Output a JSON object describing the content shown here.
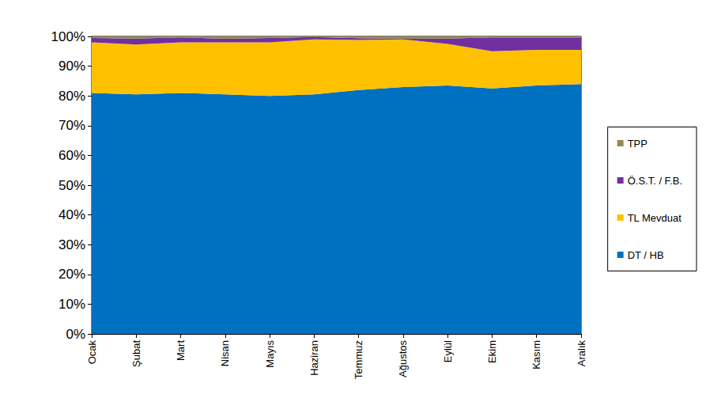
{
  "chart_data": {
    "type": "area",
    "stacked": true,
    "grid": false,
    "legend": "right",
    "categories": [
      "Ocak",
      "Şubat",
      "Mart",
      "Nisan",
      "Mayıs",
      "Haziran",
      "Temmuz",
      "Ağustos",
      "Eylül",
      "Ekim",
      "Kasım",
      "Aralık"
    ],
    "series": [
      {
        "name": "DT / HB",
        "color": "#0070c0",
        "values": [
          81,
          80.5,
          81,
          80.5,
          80,
          80.5,
          82,
          83,
          83.5,
          82.5,
          83.5,
          84
        ]
      },
      {
        "name": "TL Mevduat",
        "color": "#ffc000",
        "values": [
          17,
          16.8,
          17,
          17.5,
          18,
          18.5,
          16.8,
          16,
          14,
          12.5,
          12,
          11.5
        ]
      },
      {
        "name": "Ö.S.T. / F.B.",
        "color": "#7030a0",
        "values": [
          1.5,
          2,
          1.7,
          1.2,
          1.5,
          0.8,
          0.6,
          0.2,
          1.8,
          4.7,
          4.2,
          4.2
        ]
      },
      {
        "name": "TPP",
        "color": "#948a54",
        "values": [
          0.5,
          0.7,
          0.3,
          0.8,
          0.5,
          0.2,
          0.6,
          0.8,
          0.7,
          0.3,
          0.3,
          0.3
        ]
      }
    ],
    "ylim": [
      0,
      100
    ],
    "yticks": [
      {
        "value": 0,
        "label": "0%"
      },
      {
        "value": 10,
        "label": "10%"
      },
      {
        "value": 20,
        "label": "20%"
      },
      {
        "value": 30,
        "label": "30%"
      },
      {
        "value": 40,
        "label": "40%"
      },
      {
        "value": 50,
        "label": "50%"
      },
      {
        "value": 60,
        "label": "60%"
      },
      {
        "value": 70,
        "label": "70%"
      },
      {
        "value": 80,
        "label": "80%"
      },
      {
        "value": 90,
        "label": "90%"
      },
      {
        "value": 100,
        "label": "100%"
      }
    ]
  }
}
